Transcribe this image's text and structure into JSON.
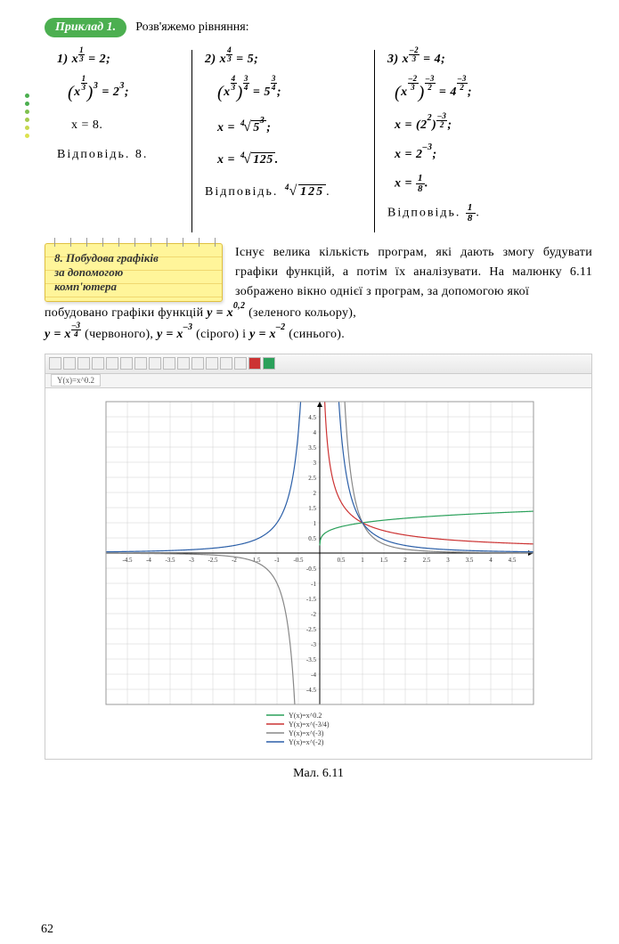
{
  "header": {
    "pill": "Приклад 1.",
    "text": "Розв'яжемо рівняння:"
  },
  "dots_colors": [
    "#4caf50",
    "#4caf50",
    "#7fc04f",
    "#a8cc4f",
    "#c8d84f",
    "#dde24f"
  ],
  "col1": {
    "l1_pre": "1)  ",
    "l1_x": "x",
    "l1_exp_n": "1",
    "l1_exp_d": "3",
    "l1_post": " = 2;",
    "l2_x": "x",
    "l2_in_n": "1",
    "l2_in_d": "3",
    "l2_out": "3",
    "l2_rhs": " = 2",
    "l2_rhs_sup": "3",
    "l2_end": ";",
    "l3": "x = 8.",
    "ans_label": "Відповідь. ",
    "ans": "8."
  },
  "col2": {
    "l1_pre": "2)  ",
    "l1_x": "x",
    "l1_exp_n": "4",
    "l1_exp_d": "3",
    "l1_post": " = 5;",
    "l2_x": "x",
    "l2_in_n": "4",
    "l2_in_d": "3",
    "l2_out_n": "3",
    "l2_out_d": "4",
    "l2_rhs": " = 5",
    "l2_rhs_n": "3",
    "l2_rhs_d": "4",
    "l2_end": ";",
    "l3_pre": "x = ",
    "l3_idx": "4",
    "l3_rad": "5",
    "l3_rad_sup": "3",
    "l3_end": ";",
    "l4_pre": "x = ",
    "l4_idx": "4",
    "l4_rad": "125",
    "l4_end": ".",
    "ans_label": "Відповідь. ",
    "ans_idx": "4",
    "ans_rad": "125",
    "ans_end": "."
  },
  "col3": {
    "l1_pre": "3)  ",
    "l1_x": "x",
    "l1_exp_neg": "–",
    "l1_exp_n": "2",
    "l1_exp_d": "3",
    "l1_post": " = 4;",
    "l2_x": "x",
    "l2_neg": "–",
    "l2_in_n": "2",
    "l2_in_d": "3",
    "l2_out_neg": "–",
    "l2_out_n": "3",
    "l2_out_d": "2",
    "l2_rhs": " = 4",
    "l2_rhs_neg": "–",
    "l2_rhs_n": "3",
    "l2_rhs_d": "2",
    "l2_end": ";",
    "l3_pre": "x = (2",
    "l3_b_sup": "2",
    "l3_mid": ")",
    "l3_neg": "–",
    "l3_n": "3",
    "l3_d": "2",
    "l3_end": ";",
    "l4": "x = 2",
    "l4_sup": "–3",
    "l4_end": ";",
    "l5_pre": "x = ",
    "l5_n": "1",
    "l5_d": "8",
    "l5_end": ".",
    "ans_label": "Відповідь. ",
    "ans_n": "1",
    "ans_d": "8",
    "ans_end": "."
  },
  "note": {
    "line1": "8. Побудова графіків",
    "line2": "за допомогою",
    "line3": "комп'ютера"
  },
  "para1": "Існує велика кількість програм, які дають змогу будувати графіки функцій, а потім їх аналізувати. На малюнку 6.11 зображено вікно однієї з програм, за допомогою якої",
  "para2_a": "побудовано графіки функцій ",
  "para2_b": " (зеленого кольору),",
  "para3_a": " (червоного), ",
  "para3_b": " (сірого) і ",
  "para3_c": " (синього).",
  "fn1": "y = x",
  "fn1_sup": "0,2",
  "fn2": "y = x",
  "fn2_neg": "–",
  "fn2_n": "3",
  "fn2_d": "4",
  "fn3": "y = x",
  "fn3_sup": "–3",
  "fn4": "y = x",
  "fn4_sup": "–2",
  "tab_label": "Y(x)=x^0.2",
  "chart": {
    "xlim": [
      -5,
      5
    ],
    "ylim": [
      -5,
      5
    ],
    "xticks": [
      -4.5,
      -4,
      -3.5,
      -3,
      -2.5,
      -2,
      -1.5,
      -1,
      -0.5,
      0,
      0.5,
      1,
      1.5,
      2,
      2.5,
      3,
      3.5,
      4,
      4.5
    ],
    "yticks": [
      -4.5,
      -4,
      -3.5,
      -3,
      -2.5,
      -2,
      -1.5,
      -1,
      -0.5,
      0.5,
      1,
      1.5,
      2,
      2.5,
      3,
      3.5,
      4,
      4.5
    ],
    "grid_color": "#d0d0d0",
    "axis_color": "#000000",
    "bg": "#ffffff",
    "label_font": 7,
    "series": [
      {
        "name": "Y(x)=x^0.2",
        "color": "#2aa05a",
        "type": "pow",
        "exp": 0.2,
        "domain": "pos"
      },
      {
        "name": "Y(x)=x^(-3/4)",
        "color": "#cc3333",
        "type": "pow",
        "exp": -0.75,
        "domain": "pos"
      },
      {
        "name": "Y(x)=x^(-3)",
        "color": "#888888",
        "type": "pow",
        "exp": -3,
        "domain": "both"
      },
      {
        "name": "Y(x)=x^(-2)",
        "color": "#2b5fa8",
        "type": "pow",
        "exp": -2,
        "domain": "both"
      }
    ],
    "legend_font": 8
  },
  "caption": "Мал. 6.11",
  "page": "62"
}
